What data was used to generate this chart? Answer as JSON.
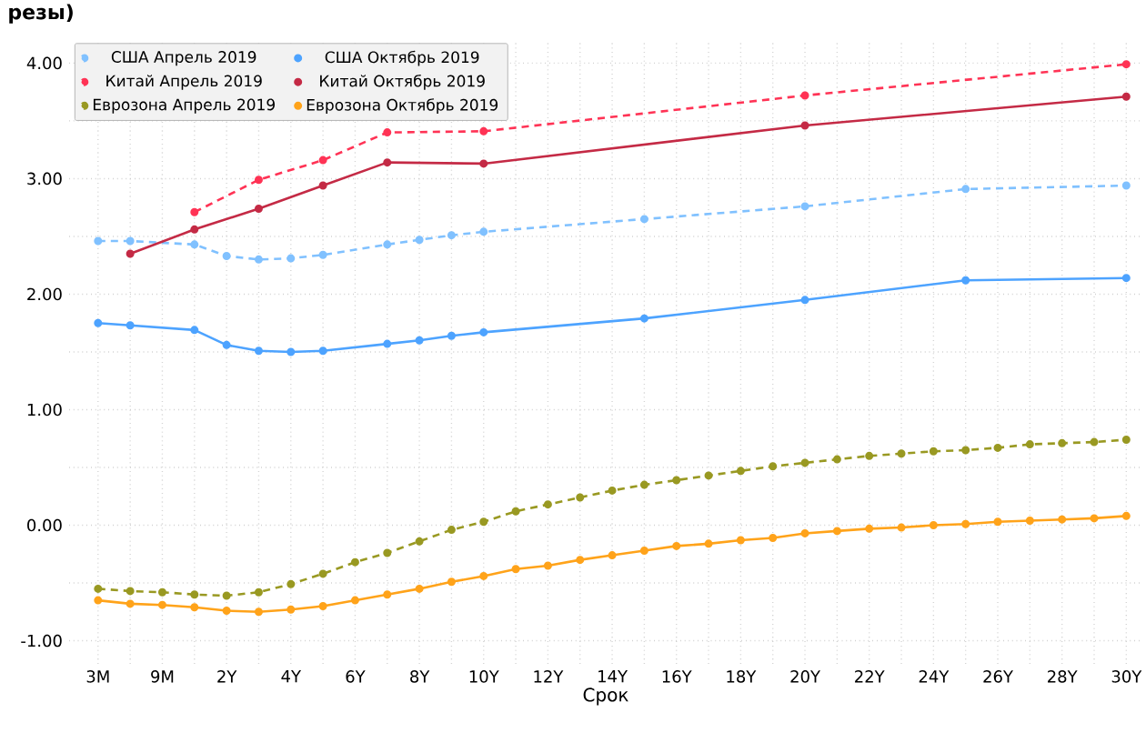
{
  "chart_data": {
    "type": "line",
    "title": "резы)",
    "xlabel": "Срок",
    "categories": [
      "3M",
      null,
      "9M",
      null,
      "2Y",
      null,
      "4Y",
      null,
      "6Y",
      null,
      "8Y",
      null,
      "10Y",
      null,
      "12Y",
      null,
      "14Y",
      null,
      "16Y",
      null,
      "18Y",
      null,
      "20Y",
      null,
      "22Y",
      null,
      "24Y",
      null,
      "26Y",
      null,
      "28Y",
      null,
      "30Y"
    ],
    "ylim": [
      -1.2,
      4.2
    ],
    "yticks": [
      {
        "value": -1,
        "label": "-1.00"
      },
      {
        "value": 0,
        "label": "0.00"
      },
      {
        "value": 1,
        "label": "1.00"
      },
      {
        "value": 2,
        "label": "2.00"
      },
      {
        "value": 3,
        "label": "3.00"
      },
      {
        "value": 4,
        "label": "4.00"
      }
    ],
    "grid": true,
    "legend": "top left",
    "marker": "circle",
    "series": [
      {
        "name": "США Апрель 2019",
        "color": "#80c1ff",
        "line_style": "dashed",
        "values": [
          2.46,
          2.46,
          null,
          2.43,
          2.33,
          2.3,
          2.31,
          2.34,
          null,
          2.43,
          2.47,
          2.51,
          2.54,
          null,
          null,
          null,
          null,
          2.65,
          null,
          null,
          null,
          null,
          2.76,
          null,
          null,
          null,
          null,
          2.91,
          null,
          null,
          null,
          null,
          2.94
        ]
      },
      {
        "name": "США Октябрь 2019",
        "color": "#4da3ff",
        "line_style": "solid",
        "values": [
          1.75,
          1.73,
          null,
          1.69,
          1.56,
          1.51,
          1.5,
          1.51,
          null,
          1.57,
          1.6,
          1.64,
          1.67,
          null,
          null,
          null,
          null,
          1.79,
          null,
          null,
          null,
          null,
          1.95,
          null,
          null,
          null,
          null,
          2.12,
          null,
          null,
          null,
          null,
          2.14
        ]
      },
      {
        "name": "Китай Апрель 2019",
        "color": "#ff3355",
        "line_style": "dashed",
        "values": [
          null,
          null,
          null,
          2.71,
          null,
          2.99,
          null,
          3.16,
          null,
          3.4,
          null,
          null,
          3.41,
          null,
          null,
          null,
          null,
          null,
          null,
          null,
          null,
          null,
          3.72,
          null,
          null,
          null,
          null,
          null,
          null,
          null,
          null,
          null,
          3.99
        ]
      },
      {
        "name": "Китай Октябрь 2019",
        "color": "#c42a45",
        "line_style": "solid",
        "values": [
          null,
          2.35,
          null,
          2.56,
          null,
          2.74,
          null,
          2.94,
          null,
          3.14,
          null,
          null,
          3.13,
          null,
          null,
          null,
          null,
          null,
          null,
          null,
          null,
          null,
          3.46,
          null,
          null,
          null,
          null,
          null,
          null,
          null,
          null,
          null,
          3.71
        ]
      },
      {
        "name": "Еврозона Апрель 2019",
        "color": "#999922",
        "line_style": "dashed",
        "values": [
          -0.55,
          -0.57,
          -0.58,
          -0.6,
          -0.61,
          -0.58,
          -0.51,
          -0.42,
          -0.32,
          -0.24,
          -0.14,
          -0.04,
          0.03,
          0.12,
          0.18,
          0.24,
          0.3,
          0.35,
          0.39,
          0.43,
          0.47,
          0.51,
          0.54,
          0.57,
          0.6,
          0.62,
          0.64,
          0.65,
          0.67,
          0.7,
          0.71,
          0.72,
          0.74
        ]
      },
      {
        "name": "Еврозона Октябрь 2019",
        "color": "#ffa31a",
        "line_style": "solid",
        "values": [
          -0.65,
          -0.68,
          -0.69,
          -0.71,
          -0.74,
          -0.75,
          -0.73,
          -0.7,
          -0.65,
          -0.6,
          -0.55,
          -0.49,
          -0.44,
          -0.38,
          -0.35,
          -0.3,
          -0.26,
          -0.22,
          -0.18,
          -0.16,
          -0.13,
          -0.11,
          -0.07,
          -0.05,
          -0.03,
          -0.02,
          0.0,
          0.01,
          0.03,
          0.04,
          0.05,
          0.06,
          0.08
        ]
      }
    ]
  }
}
